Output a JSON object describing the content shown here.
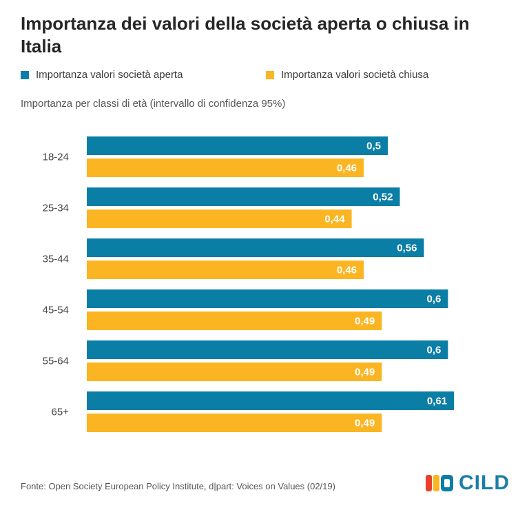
{
  "title": "Importanza dei valori della società aperta o chiusa in Italia",
  "subtitle": "Importanza per classi di età (intervallo di confidenza 95%)",
  "legend": [
    {
      "label": "Importanza valori società aperta",
      "color": "#0b7ea6"
    },
    {
      "label": "Importanza valori società chiusa",
      "color": "#fbb522"
    }
  ],
  "source": "Fonte: Open Society European Policy Institute, d|part: Voices on Values (02/19)",
  "logo": {
    "text": "CILD",
    "icon": "cild-logo-icon",
    "colors": [
      "#e8412b",
      "#fbb522",
      "#0b7ea6"
    ]
  },
  "chart_data": {
    "type": "bar",
    "orientation": "horizontal",
    "categories": [
      "18-24",
      "25-34",
      "35-44",
      "45-54",
      "55-64",
      "65+"
    ],
    "series": [
      {
        "name": "Importanza valori società aperta",
        "values": [
          0.5,
          0.52,
          0.56,
          0.6,
          0.6,
          0.61
        ],
        "labels": [
          "0,5",
          "0,52",
          "0,56",
          "0,6",
          "0,6",
          "0,61"
        ],
        "color": "#0b7ea6"
      },
      {
        "name": "Importanza valori società chiusa",
        "values": [
          0.46,
          0.44,
          0.46,
          0.49,
          0.49,
          0.49
        ],
        "labels": [
          "0,46",
          "0,44",
          "0,46",
          "0,49",
          "0,49",
          "0,49"
        ],
        "color": "#fbb522"
      }
    ],
    "xlim": [
      0,
      0.7
    ],
    "grid": false,
    "legend_position": "top"
  }
}
